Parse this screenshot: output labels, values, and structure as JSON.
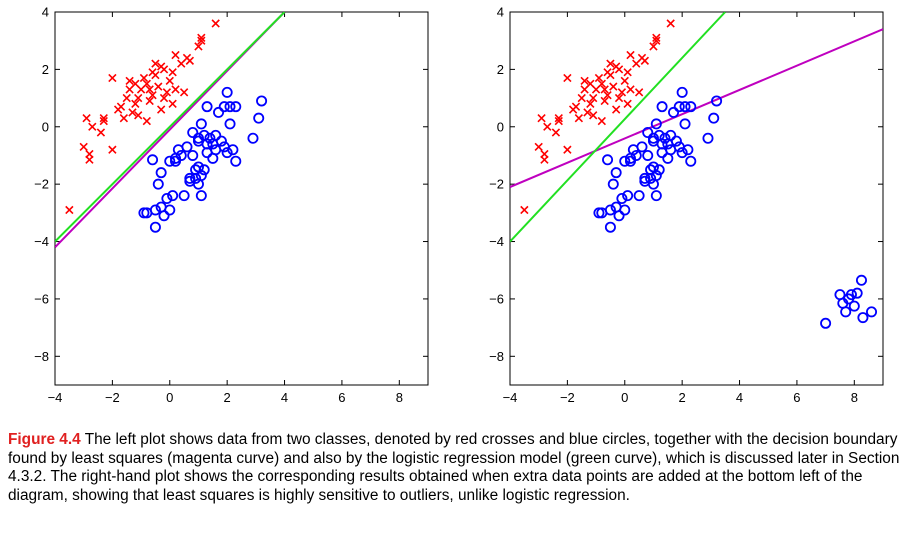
{
  "colors": {
    "class1": "#ff0000",
    "class2": "#0000ff",
    "least_squares": "#bf00bf",
    "logistic": "#22e022",
    "caption_label": "#e02020"
  },
  "caption": {
    "label": "Figure 4.4",
    "text": "The left plot shows data from two classes, denoted by red crosses and blue circles, together with the decision boundary found by least squares (magenta curve) and also by the logistic regression model (green curve), which is discussed later in Section 4.3.2. The right-hand plot shows the corresponding results obtained when extra data points are added at the bottom left of the diagram, showing that least squares is highly sensitive to outliers, unlike logistic regression."
  },
  "chart_data": [
    {
      "type": "scatter",
      "title": "",
      "xlabel": "",
      "ylabel": "",
      "xlim": [
        -4,
        9
      ],
      "ylim": [
        -9,
        4
      ],
      "xticks": [
        -4,
        -2,
        0,
        2,
        4,
        6,
        8
      ],
      "yticks": [
        4,
        2,
        0,
        -2,
        -4,
        -6,
        -8
      ],
      "xtick_labels": [
        "−4",
        "−2",
        "0",
        "2",
        "4",
        "6",
        "8"
      ],
      "ytick_labels": [
        "4",
        "2",
        "0",
        "−2",
        "−4",
        "−6",
        "−8"
      ],
      "grid": false,
      "series": [
        {
          "marker": "cross",
          "color": "#ff0000",
          "points": [
            [
              -3.5,
              -2.9
            ],
            [
              -3.0,
              -0.7
            ],
            [
              -2.8,
              -0.95
            ],
            [
              -2.8,
              -1.15
            ],
            [
              -2.9,
              0.3
            ],
            [
              -2.7,
              0.0
            ],
            [
              -2.4,
              -0.2
            ],
            [
              -2.3,
              0.2
            ],
            [
              -2.3,
              0.3
            ],
            [
              -2.0,
              -0.8
            ],
            [
              -2.0,
              1.7
            ],
            [
              -1.8,
              0.6
            ],
            [
              -1.7,
              0.7
            ],
            [
              -1.6,
              0.3
            ],
            [
              -1.5,
              1.0
            ],
            [
              -1.4,
              1.6
            ],
            [
              -1.4,
              1.3
            ],
            [
              -1.3,
              0.5
            ],
            [
              -1.2,
              0.8
            ],
            [
              -1.2,
              1.5
            ],
            [
              -1.1,
              1.0
            ],
            [
              -1.1,
              0.4
            ],
            [
              -1.0,
              1.3
            ],
            [
              -0.9,
              1.7
            ],
            [
              -0.8,
              1.5
            ],
            [
              -0.8,
              0.2
            ],
            [
              -0.7,
              1.3
            ],
            [
              -0.7,
              0.9
            ],
            [
              -0.6,
              1.9
            ],
            [
              -0.6,
              1.1
            ],
            [
              -0.5,
              1.8
            ],
            [
              -0.5,
              2.2
            ],
            [
              -0.4,
              1.4
            ],
            [
              -0.3,
              0.6
            ],
            [
              -0.3,
              2.1
            ],
            [
              -0.2,
              2.0
            ],
            [
              -0.2,
              1.0
            ],
            [
              -0.1,
              1.2
            ],
            [
              0.0,
              1.6
            ],
            [
              0.1,
              0.8
            ],
            [
              0.1,
              1.9
            ],
            [
              0.2,
              1.3
            ],
            [
              0.2,
              2.5
            ],
            [
              0.4,
              2.2
            ],
            [
              0.5,
              1.2
            ],
            [
              0.6,
              2.4
            ],
            [
              0.7,
              2.3
            ],
            [
              1.0,
              2.8
            ],
            [
              1.1,
              3.0
            ],
            [
              1.1,
              3.1
            ],
            [
              1.6,
              3.6
            ]
          ]
        },
        {
          "marker": "circle",
          "color": "#0000ff",
          "points": [
            [
              -0.9,
              -3.0
            ],
            [
              -0.8,
              -3.0
            ],
            [
              -0.6,
              -1.15
            ],
            [
              -0.5,
              -3.5
            ],
            [
              -0.5,
              -2.9
            ],
            [
              -0.4,
              -2.0
            ],
            [
              -0.3,
              -1.6
            ],
            [
              -0.3,
              -2.8
            ],
            [
              -0.2,
              -3.1
            ],
            [
              -0.1,
              -2.5
            ],
            [
              0.0,
              -1.2
            ],
            [
              0.0,
              -2.9
            ],
            [
              0.1,
              -2.4
            ],
            [
              0.2,
              -1.2
            ],
            [
              0.2,
              -1.1
            ],
            [
              0.3,
              -0.8
            ],
            [
              0.4,
              -1.0
            ],
            [
              0.5,
              -2.4
            ],
            [
              0.6,
              -0.7
            ],
            [
              0.7,
              -1.8
            ],
            [
              0.7,
              -1.9
            ],
            [
              0.8,
              -0.2
            ],
            [
              0.8,
              -1.0
            ],
            [
              0.9,
              -1.5
            ],
            [
              0.9,
              -1.8
            ],
            [
              1.0,
              -0.5
            ],
            [
              1.0,
              -1.4
            ],
            [
              1.0,
              -2.0
            ],
            [
              1.0,
              -0.4
            ],
            [
              1.1,
              0.1
            ],
            [
              1.1,
              -1.7
            ],
            [
              1.1,
              -2.4
            ],
            [
              1.2,
              -0.3
            ],
            [
              1.2,
              -1.5
            ],
            [
              1.3,
              -0.6
            ],
            [
              1.3,
              -0.9
            ],
            [
              1.3,
              0.7
            ],
            [
              1.4,
              -0.4
            ],
            [
              1.5,
              -0.6
            ],
            [
              1.5,
              -1.1
            ],
            [
              1.6,
              -0.3
            ],
            [
              1.6,
              -0.8
            ],
            [
              1.7,
              0.5
            ],
            [
              1.8,
              -0.5
            ],
            [
              1.9,
              -0.7
            ],
            [
              1.9,
              0.7
            ],
            [
              2.0,
              1.2
            ],
            [
              2.0,
              -0.9
            ],
            [
              2.1,
              0.1
            ],
            [
              2.1,
              0.7
            ],
            [
              2.2,
              -0.8
            ],
            [
              2.3,
              -1.2
            ],
            [
              2.3,
              0.7
            ],
            [
              2.9,
              -0.4
            ],
            [
              3.1,
              0.3
            ],
            [
              3.2,
              0.9
            ]
          ]
        }
      ],
      "lines": [
        {
          "name": "least squares",
          "color": "#bf00bf",
          "x": [
            -4.0,
            4.0
          ],
          "y": [
            -4.2,
            4.0
          ]
        },
        {
          "name": "logistic regression",
          "color": "#22e022",
          "x": [
            -4.0,
            4.0
          ],
          "y": [
            -4.0,
            4.0
          ]
        }
      ]
    },
    {
      "type": "scatter",
      "title": "",
      "xlabel": "",
      "ylabel": "",
      "xlim": [
        -4,
        9
      ],
      "ylim": [
        -9,
        4
      ],
      "xticks": [
        -4,
        -2,
        0,
        2,
        4,
        6,
        8
      ],
      "yticks": [
        4,
        2,
        0,
        -2,
        -4,
        -6,
        -8
      ],
      "xtick_labels": [
        "−4",
        "−2",
        "0",
        "2",
        "4",
        "6",
        "8"
      ],
      "ytick_labels": [
        "4",
        "2",
        "0",
        "−2",
        "−4",
        "−6",
        "−8"
      ],
      "grid": false,
      "series": [
        {
          "marker": "cross",
          "color": "#ff0000",
          "points": [
            [
              -3.5,
              -2.9
            ],
            [
              -3.0,
              -0.7
            ],
            [
              -2.8,
              -0.95
            ],
            [
              -2.8,
              -1.15
            ],
            [
              -2.9,
              0.3
            ],
            [
              -2.7,
              0.0
            ],
            [
              -2.4,
              -0.2
            ],
            [
              -2.3,
              0.2
            ],
            [
              -2.3,
              0.3
            ],
            [
              -2.0,
              -0.8
            ],
            [
              -2.0,
              1.7
            ],
            [
              -1.8,
              0.6
            ],
            [
              -1.7,
              0.7
            ],
            [
              -1.6,
              0.3
            ],
            [
              -1.5,
              1.0
            ],
            [
              -1.4,
              1.6
            ],
            [
              -1.4,
              1.3
            ],
            [
              -1.3,
              0.5
            ],
            [
              -1.2,
              0.8
            ],
            [
              -1.2,
              1.5
            ],
            [
              -1.1,
              1.0
            ],
            [
              -1.1,
              0.4
            ],
            [
              -1.0,
              1.3
            ],
            [
              -0.9,
              1.7
            ],
            [
              -0.8,
              1.5
            ],
            [
              -0.8,
              0.2
            ],
            [
              -0.7,
              1.3
            ],
            [
              -0.7,
              0.9
            ],
            [
              -0.6,
              1.9
            ],
            [
              -0.6,
              1.1
            ],
            [
              -0.5,
              1.8
            ],
            [
              -0.5,
              2.2
            ],
            [
              -0.4,
              1.4
            ],
            [
              -0.3,
              0.6
            ],
            [
              -0.3,
              2.1
            ],
            [
              -0.2,
              2.0
            ],
            [
              -0.2,
              1.0
            ],
            [
              -0.1,
              1.2
            ],
            [
              0.0,
              1.6
            ],
            [
              0.1,
              0.8
            ],
            [
              0.1,
              1.9
            ],
            [
              0.2,
              1.3
            ],
            [
              0.2,
              2.5
            ],
            [
              0.4,
              2.2
            ],
            [
              0.5,
              1.2
            ],
            [
              0.6,
              2.4
            ],
            [
              0.7,
              2.3
            ],
            [
              1.0,
              2.8
            ],
            [
              1.1,
              3.0
            ],
            [
              1.1,
              3.1
            ],
            [
              1.6,
              3.6
            ]
          ]
        },
        {
          "marker": "circle",
          "color": "#0000ff",
          "points": [
            [
              -0.9,
              -3.0
            ],
            [
              -0.8,
              -3.0
            ],
            [
              -0.6,
              -1.15
            ],
            [
              -0.5,
              -3.5
            ],
            [
              -0.5,
              -2.9
            ],
            [
              -0.4,
              -2.0
            ],
            [
              -0.3,
              -1.6
            ],
            [
              -0.3,
              -2.8
            ],
            [
              -0.2,
              -3.1
            ],
            [
              -0.1,
              -2.5
            ],
            [
              0.0,
              -1.2
            ],
            [
              0.0,
              -2.9
            ],
            [
              0.1,
              -2.4
            ],
            [
              0.2,
              -1.2
            ],
            [
              0.2,
              -1.1
            ],
            [
              0.3,
              -0.8
            ],
            [
              0.4,
              -1.0
            ],
            [
              0.5,
              -2.4
            ],
            [
              0.6,
              -0.7
            ],
            [
              0.7,
              -1.8
            ],
            [
              0.7,
              -1.9
            ],
            [
              0.8,
              -0.2
            ],
            [
              0.8,
              -1.0
            ],
            [
              0.9,
              -1.5
            ],
            [
              0.9,
              -1.8
            ],
            [
              1.0,
              -0.5
            ],
            [
              1.0,
              -1.4
            ],
            [
              1.0,
              -2.0
            ],
            [
              1.0,
              -0.4
            ],
            [
              1.1,
              0.1
            ],
            [
              1.1,
              -1.7
            ],
            [
              1.1,
              -2.4
            ],
            [
              1.2,
              -0.3
            ],
            [
              1.2,
              -1.5
            ],
            [
              1.3,
              -0.6
            ],
            [
              1.3,
              -0.9
            ],
            [
              1.3,
              0.7
            ],
            [
              1.4,
              -0.4
            ],
            [
              1.5,
              -0.6
            ],
            [
              1.5,
              -1.1
            ],
            [
              1.6,
              -0.3
            ],
            [
              1.6,
              -0.8
            ],
            [
              1.7,
              0.5
            ],
            [
              1.8,
              -0.5
            ],
            [
              1.9,
              -0.7
            ],
            [
              1.9,
              0.7
            ],
            [
              2.0,
              1.2
            ],
            [
              2.0,
              -0.9
            ],
            [
              2.1,
              0.1
            ],
            [
              2.1,
              0.7
            ],
            [
              2.2,
              -0.8
            ],
            [
              2.3,
              -1.2
            ],
            [
              2.3,
              0.7
            ],
            [
              2.9,
              -0.4
            ],
            [
              3.1,
              0.3
            ],
            [
              3.2,
              0.9
            ],
            [
              7.0,
              -6.85
            ],
            [
              7.5,
              -5.85
            ],
            [
              7.6,
              -6.15
            ],
            [
              7.7,
              -6.45
            ],
            [
              7.8,
              -6.0
            ],
            [
              7.9,
              -5.85
            ],
            [
              8.0,
              -6.25
            ],
            [
              8.1,
              -5.8
            ],
            [
              8.25,
              -5.35
            ],
            [
              8.3,
              -6.65
            ],
            [
              8.6,
              -6.45
            ]
          ]
        }
      ],
      "lines": [
        {
          "name": "least squares",
          "color": "#bf00bf",
          "x": [
            -4.0,
            9.0
          ],
          "y": [
            -2.1,
            3.4
          ]
        },
        {
          "name": "logistic regression",
          "color": "#22e022",
          "x": [
            -4.0,
            3.5
          ],
          "y": [
            -4.0,
            4.0
          ]
        }
      ]
    }
  ]
}
